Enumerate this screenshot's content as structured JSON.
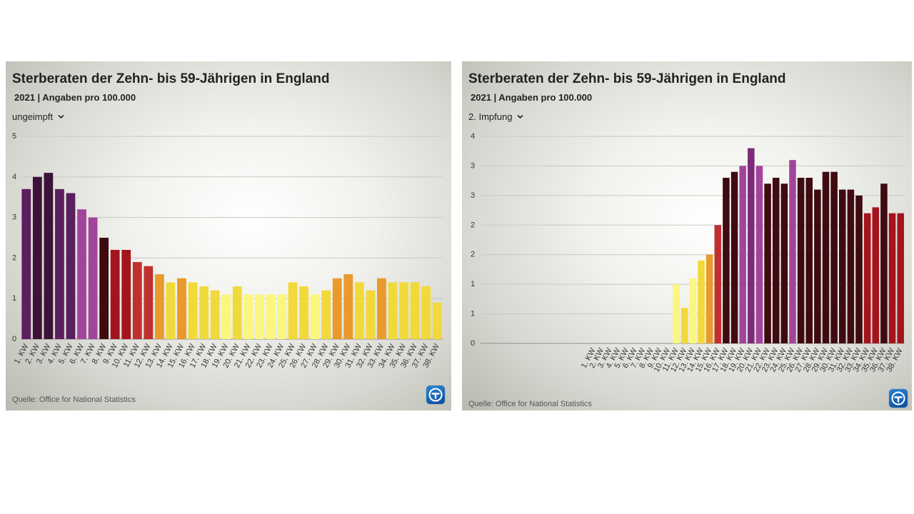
{
  "colors": {
    "dark_purple": "#3d1238",
    "violet": "#5a1f5e",
    "magenta": "#a2449b",
    "maroon": "#3f0b10",
    "red": "#c0302f",
    "orange": "#e89a2c",
    "yellow": "#f2d93a",
    "light_yellow": "#fbf67e"
  },
  "icons": {
    "logo": "tagesschau-logo-icon",
    "chevron": "chevron-down-icon"
  },
  "chart_data": [
    {
      "type": "bar",
      "title": "Sterberaten der Zehn- bis 59-Jährigen in England",
      "subtitle": "2021 | Angaben pro 100.000",
      "selector": "ungeimpft",
      "source": "Quelle: Office for National Statistics",
      "ylim": [
        0,
        5
      ],
      "y_ticks": [
        "0",
        "1",
        "2",
        "3",
        "4",
        "5"
      ],
      "grid": true,
      "categories": [
        "1. KW",
        "2. KW",
        "3. KW",
        "4. KW",
        "5. KW",
        "6. KW",
        "7. KW",
        "8. KW",
        "9. KW",
        "10. KW",
        "11. KW",
        "12. KW",
        "13. KW",
        "14. KW",
        "15. KW",
        "16. KW",
        "17. KW",
        "18. KW",
        "19. KW",
        "20. KW",
        "21. KW",
        "22. KW",
        "23. KW",
        "24. KW",
        "25. KW",
        "26. KW",
        "27. KW",
        "28. KW",
        "29. KW",
        "30. KW",
        "31. KW",
        "32. KW",
        "33. KW",
        "34. KW",
        "35. KW",
        "36. KW",
        "37. KW",
        "38. KW"
      ],
      "values": [
        3.7,
        4.0,
        4.1,
        3.7,
        3.6,
        3.2,
        3.0,
        2.5,
        2.2,
        2.2,
        1.9,
        1.8,
        1.6,
        1.4,
        1.5,
        1.4,
        1.3,
        1.2,
        1.1,
        1.3,
        1.1,
        1.1,
        1.1,
        1.1,
        1.4,
        1.3,
        1.1,
        1.2,
        1.5,
        1.6,
        1.4,
        1.2,
        1.5,
        1.4,
        1.4,
        1.4,
        1.3,
        0.9
      ],
      "bar_colors": [
        "#5a1f5e",
        "#3d1238",
        "#3d1238",
        "#5a1f5e",
        "#5a1f5e",
        "#a2449b",
        "#a2449b",
        "#3f0b10",
        "#a4141c",
        "#a4141c",
        "#c0302f",
        "#c0302f",
        "#e89a2c",
        "#f2d93a",
        "#e89a2c",
        "#f2d93a",
        "#f2d93a",
        "#f2d93a",
        "#fbf67e",
        "#f2d93a",
        "#fbf67e",
        "#fbf67e",
        "#fbf67e",
        "#fbf67e",
        "#f2d93a",
        "#f2d93a",
        "#fbf67e",
        "#f2d93a",
        "#e89a2c",
        "#e89a2c",
        "#f2d93a",
        "#f2d93a",
        "#e89a2c",
        "#f2d93a",
        "#f2d93a",
        "#f2d93a",
        "#f2d93a",
        "#f2d93a"
      ]
    },
    {
      "type": "bar",
      "title": "Sterberaten der Zehn- bis 59-Jährigen in England",
      "subtitle": "2021 | Angaben pro 100.000",
      "selector": "2. Impfung",
      "source": "Quelle: Office for National Statistics",
      "ylim": [
        0,
        3.5
      ],
      "y_ticks": [
        "0",
        "1",
        "1",
        "2",
        "2",
        "3",
        "3",
        "4"
      ],
      "grid": true,
      "categories": [
        "1. KW",
        "2. KW",
        "3. KW",
        "4. KW",
        "5. KW",
        "6. KW",
        "7. KW",
        "8. KW",
        "9. KW",
        "10. KW",
        "11. KW",
        "12. KW",
        "13. KW",
        "14. KW",
        "15. KW",
        "16. KW",
        "17. KW",
        "18. KW",
        "19. KW",
        "20. KW",
        "21. KW",
        "22. KW",
        "23. KW",
        "24. KW",
        "25. KW",
        "26. KW",
        "27. KW",
        "28. KW",
        "29. KW",
        "30. KW",
        "31. KW",
        "32. KW",
        "33. KW",
        "34. KW",
        "35. KW",
        "36. KW",
        "37. KW",
        "38. KW"
      ],
      "values": [
        0,
        0,
        0,
        0,
        0,
        0,
        0,
        0,
        0,
        0,
        1.0,
        0.6,
        1.1,
        1.4,
        1.5,
        2.0,
        2.8,
        2.9,
        3.0,
        3.3,
        3.0,
        2.7,
        2.8,
        2.7,
        3.1,
        2.8,
        2.8,
        2.6,
        2.9,
        2.9,
        2.6,
        2.6,
        2.5,
        2.2,
        2.3,
        2.7,
        2.2,
        2.2
      ],
      "bar_colors": [
        "#fbf67e",
        "#fbf67e",
        "#fbf67e",
        "#fbf67e",
        "#fbf67e",
        "#fbf67e",
        "#fbf67e",
        "#fbf67e",
        "#fbf67e",
        "#fbf67e",
        "#fbf67e",
        "#f2d93a",
        "#fbf67e",
        "#f2d93a",
        "#e89a2c",
        "#c0302f",
        "#3f0b10",
        "#3f0b10",
        "#a2449b",
        "#7e2a7a",
        "#a2449b",
        "#3f0b10",
        "#3f0b10",
        "#3f0b10",
        "#a2449b",
        "#3f0b10",
        "#3f0b10",
        "#3f0b10",
        "#3f0b10",
        "#3f0b10",
        "#3f0b10",
        "#3f0b10",
        "#3f0b10",
        "#a4141c",
        "#a4141c",
        "#3f0b10",
        "#a4141c",
        "#a4141c"
      ]
    }
  ]
}
